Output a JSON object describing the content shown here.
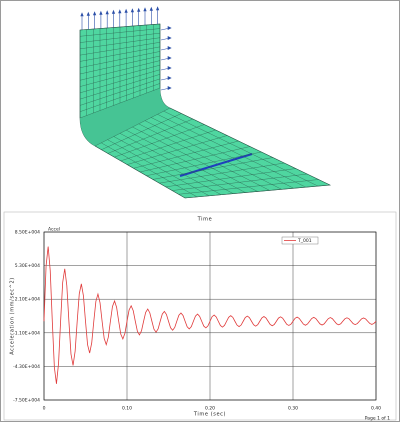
{
  "page_label": "Page 1 of 1",
  "chart_data": {
    "type": "line",
    "title": "Time",
    "subtitle": "Accel",
    "xlabel": "Time (sec)",
    "ylabel": "Acceleration (mm/sec^2)",
    "xlim": [
      0,
      0.4
    ],
    "ylim": [
      -75000,
      85000
    ],
    "xticks": [
      0,
      {
        "value": 0.1,
        "label": "0.10"
      },
      {
        "value": 0.2,
        "label": "0.20"
      },
      {
        "value": 0.3,
        "label": "0.30"
      },
      {
        "value": 0.4,
        "label": "0.40"
      }
    ],
    "yticks": [
      {
        "value": 85000,
        "label": "8.50E+004"
      },
      {
        "value": 53000,
        "label": "5.30E+004"
      },
      {
        "value": 21000,
        "label": "2.10E+004"
      },
      {
        "value": -11000,
        "label": "-1.10E+004"
      },
      {
        "value": -43000,
        "label": "-4.30E+004"
      },
      {
        "value": -75000,
        "label": "-7.50E+004"
      }
    ],
    "grid": true,
    "legend": "upper right",
    "x": [
      0,
      0.0025,
      0.005,
      0.0075,
      0.01,
      0.0125,
      0.015,
      0.0175,
      0.02,
      0.0225,
      0.025,
      0.0275,
      0.03,
      0.0325,
      0.035,
      0.0375,
      0.04,
      0.0425,
      0.045,
      0.0475,
      0.05,
      0.0525,
      0.055,
      0.0575,
      0.06,
      0.0625,
      0.065,
      0.0675,
      0.07,
      0.0725,
      0.075,
      0.0775,
      0.08,
      0.0825,
      0.085,
      0.0875,
      0.09,
      0.0925,
      0.095,
      0.0975,
      0.1,
      0.1025,
      0.105,
      0.1075,
      0.11,
      0.1125,
      0.115,
      0.1175,
      0.12,
      0.1225,
      0.125,
      0.1275,
      0.13,
      0.1325,
      0.135,
      0.1375,
      0.14,
      0.1425,
      0.145,
      0.1475,
      0.15,
      0.1525,
      0.155,
      0.1575,
      0.16,
      0.1625,
      0.165,
      0.1675,
      0.17,
      0.1725,
      0.175,
      0.1775,
      0.18,
      0.1825,
      0.185,
      0.1875,
      0.19,
      0.1925,
      0.195,
      0.1975,
      0.2,
      0.2025,
      0.205,
      0.2075,
      0.21,
      0.2125,
      0.215,
      0.2175,
      0.22,
      0.2225,
      0.225,
      0.2275,
      0.23,
      0.2325,
      0.235,
      0.2375,
      0.24,
      0.2425,
      0.245,
      0.2475,
      0.25,
      0.2525,
      0.255,
      0.2575,
      0.26,
      0.2625,
      0.265,
      0.2675,
      0.27,
      0.2725,
      0.275,
      0.2775,
      0.28,
      0.2825,
      0.285,
      0.2875,
      0.29,
      0.2925,
      0.295,
      0.2975,
      0.3,
      0.3025,
      0.305,
      0.3075,
      0.31,
      0.3125,
      0.315,
      0.3175,
      0.32,
      0.3225,
      0.325,
      0.3275,
      0.33,
      0.3325,
      0.335,
      0.3375,
      0.34,
      0.3425,
      0.345,
      0.3475,
      0.35,
      0.3525,
      0.355,
      0.3575,
      0.36,
      0.3625,
      0.365,
      0.3675,
      0.37,
      0.3725,
      0.375,
      0.3775,
      0.38,
      0.3825,
      0.385,
      0.3875,
      0.39,
      0.3925,
      0.395,
      0.3975,
      0.4
    ],
    "series": [
      {
        "name": "T_001",
        "color": "#e03a3a",
        "values": [
          0,
          52700,
          71200,
          48200,
          0,
          -44000,
          -59600,
          -40300,
          0,
          36900,
          50000,
          33800,
          0,
          -31100,
          -42100,
          -28500,
          0,
          26200,
          35600,
          24200,
          0,
          -22300,
          -30300,
          -20600,
          0,
          19000,
          25900,
          17600,
          0,
          -16300,
          -22300,
          -15200,
          0,
          14100,
          19300,
          13200,
          0,
          -12300,
          -16800,
          -11500,
          0,
          10700,
          14700,
          10100,
          0,
          -9500,
          -13000,
          -9000,
          0,
          8400,
          11600,
          8000,
          0,
          -7600,
          -10400,
          -7200,
          0,
          6800,
          9400,
          6500,
          0,
          -6200,
          -8600,
          -5900,
          0,
          5700,
          7900,
          5500,
          0,
          -5300,
          -7300,
          -5100,
          0,
          4900,
          6800,
          4700,
          0,
          -4600,
          -6300,
          -4400,
          0,
          4300,
          5900,
          4100,
          0,
          -4000,
          -5600,
          -3900,
          0,
          3800,
          5300,
          3700,
          0,
          -3600,
          -5100,
          -3600,
          0,
          3500,
          4900,
          3400,
          0,
          -3300,
          -4700,
          -3300,
          0,
          3200,
          4500,
          3100,
          0,
          -3100,
          -4300,
          -3000,
          0,
          3000,
          4200,
          2900,
          0,
          -2900,
          -4000,
          -2800,
          0,
          2800,
          3900,
          2700,
          0,
          -2700,
          -3800,
          -2600,
          0,
          2600,
          3700,
          2600,
          0,
          -2500,
          -3600,
          -2500,
          0,
          2500,
          3500,
          2400,
          0,
          -2400,
          -3400,
          -2400,
          0,
          2300,
          3300,
          2300,
          0,
          -2300,
          -3200,
          -2200,
          0,
          2200,
          3100,
          2200,
          0,
          -2100,
          -3000,
          -2100,
          0
        ]
      }
    ]
  }
}
